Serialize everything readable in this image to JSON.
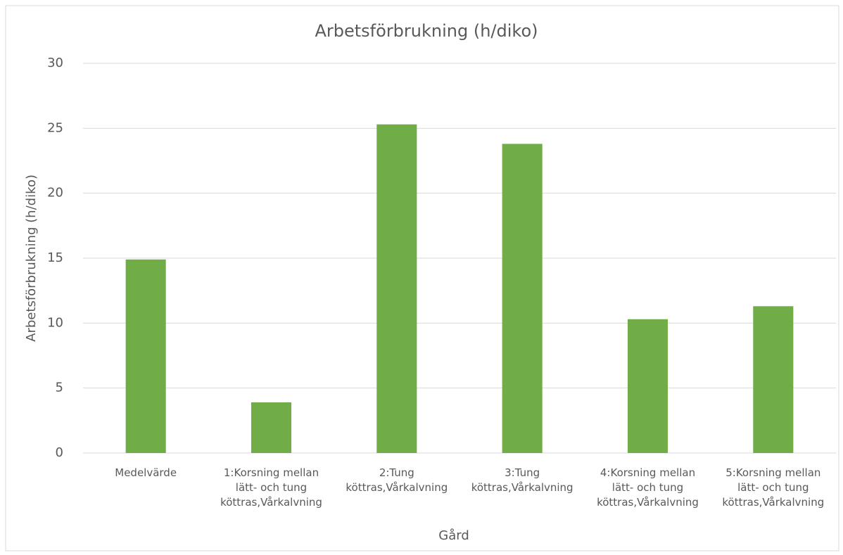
{
  "chart_data": {
    "type": "bar",
    "title": "Arbetsförbrukning (h/diko)",
    "x_label": "Gård",
    "y_label": "Arbetsförbrukning (h/diko)",
    "categories": [
      "Medelvärde",
      "1:Korsning mellan lätt- och tung köttras,Vårkalvning",
      "2:Tung köttras,Vårkalvning",
      "3:Tung köttras,Vårkalvning",
      "4:Korsning mellan lätt- och tung köttras,Vårkalvning",
      "5:Korsning mellan lätt- och tung köttras,Vårkalvning"
    ],
    "values": [
      14.9,
      3.9,
      25.3,
      23.8,
      10.3,
      11.3
    ],
    "color": "#70ad47",
    "ylim": [
      0,
      30
    ],
    "yticks": [
      0,
      5,
      10,
      15,
      20,
      25,
      30
    ],
    "grid": true
  }
}
